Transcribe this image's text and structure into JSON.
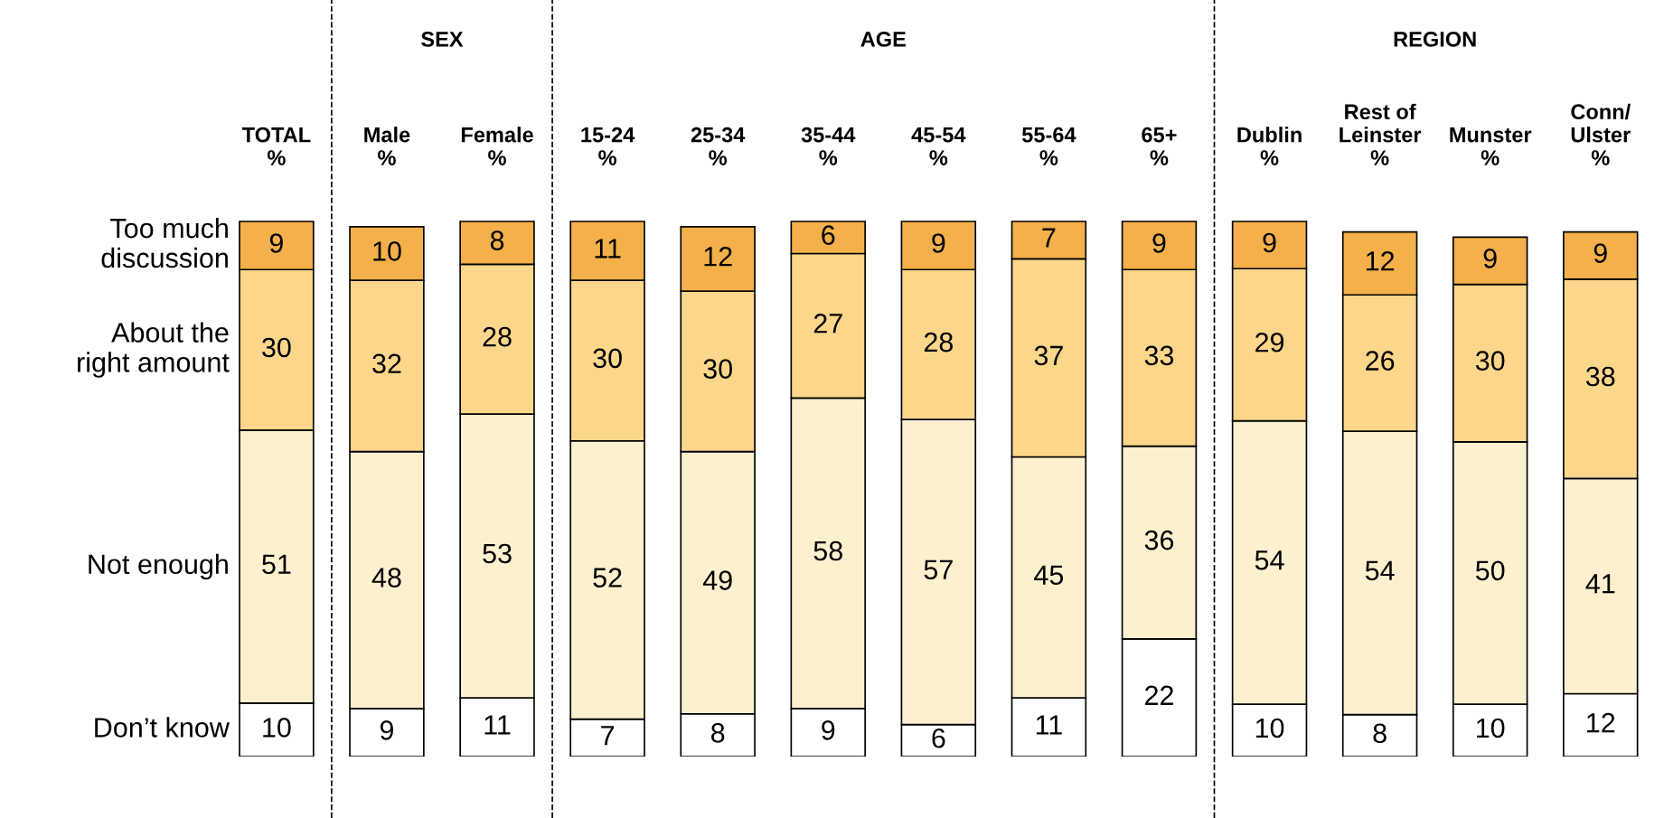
{
  "chart_data": [
    {
      "type": "bar",
      "stacked": true,
      "data_labels": true,
      "tick_labels": "x",
      "categories": [
        "TOTAL\n%"
      ],
      "series": [
        {
          "name": "Don’t know",
          "color": "#ffffff",
          "values": [
            10
          ]
        },
        {
          "name": "Not enough",
          "color": "#fdf0cf",
          "values": [
            51
          ]
        },
        {
          "name": "About the\nright amount",
          "color": "#fcd68a",
          "values": [
            30
          ]
        },
        {
          "name": "Too much\ndiscussion",
          "color": "#f4b04a",
          "values": [
            9
          ]
        }
      ]
    },
    {
      "type": "bar",
      "stacked": true,
      "data_labels": true,
      "tick_labels": "x",
      "title": "SEX",
      "categories": [
        "Male\n%",
        "Female\n%"
      ],
      "series": [
        {
          "color": "#ffffff",
          "values": [
            9,
            11
          ]
        },
        {
          "color": "#fdf0cf",
          "values": [
            48,
            53
          ]
        },
        {
          "color": "#fcd68a",
          "values": [
            32,
            28
          ]
        },
        {
          "color": "#f4b04a",
          "values": [
            10,
            8
          ]
        }
      ]
    },
    {
      "type": "bar",
      "stacked": true,
      "data_labels": true,
      "tick_labels": "x",
      "title": "AGE",
      "categories": [
        "15-24\n%",
        "25-34\n%",
        "35-44\n%",
        "45-54\n%",
        "55-64\n%",
        "65+\n%"
      ],
      "series": [
        {
          "color": "#ffffff",
          "values": [
            7,
            8,
            9,
            6,
            11,
            22
          ]
        },
        {
          "color": "#fdf0cf",
          "values": [
            52,
            49,
            58,
            57,
            45,
            36
          ]
        },
        {
          "color": "#fcd68a",
          "values": [
            30,
            30,
            27,
            28,
            37,
            33
          ]
        },
        {
          "color": "#f4b04a",
          "values": [
            11,
            12,
            6,
            9,
            7,
            9
          ]
        }
      ]
    },
    {
      "type": "bar",
      "stacked": true,
      "data_labels": true,
      "tick_labels": "x",
      "title": "REGION",
      "categories": [
        "Dublin\n%",
        "Rest of\nLeinster\n%",
        "Munster\n%",
        "Conn/\nUlster\n%"
      ],
      "series": [
        {
          "color": "#ffffff",
          "values": [
            10,
            8,
            10,
            12
          ]
        },
        {
          "color": "#fdf0cf",
          "values": [
            54,
            54,
            50,
            41
          ]
        },
        {
          "color": "#fcd68a",
          "values": [
            29,
            26,
            30,
            38
          ]
        },
        {
          "color": "#f4b04a",
          "values": [
            9,
            12,
            9,
            9
          ]
        }
      ]
    }
  ]
}
